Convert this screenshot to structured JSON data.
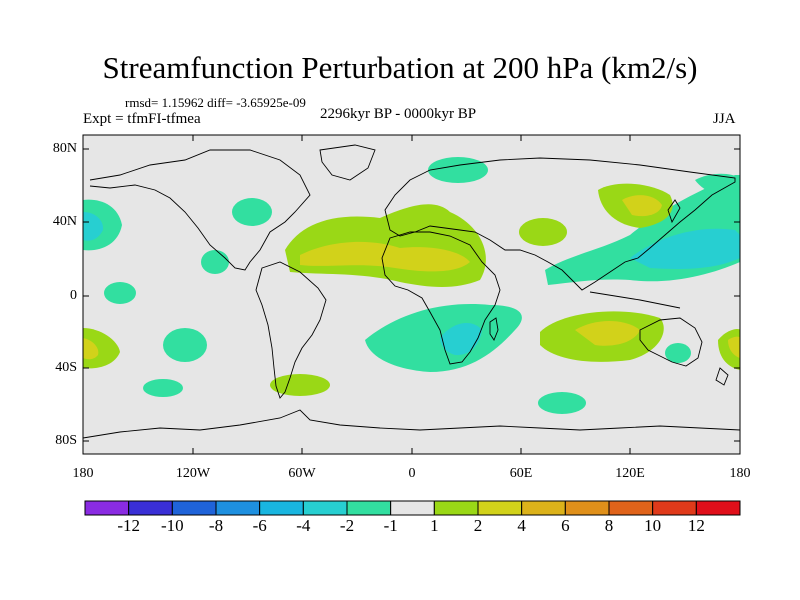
{
  "title": "Streamfunction Perturbation at 200 hPa (km2/s)",
  "stats": "rmsd= 1.15962 diff= -3.65925e-09",
  "experiment": "Expt = tfmFI-tfmea",
  "period": "2296kyr BP - 0000kyr BP",
  "season": "JJA",
  "lat_labels": [
    "80N",
    "40N",
    "0",
    "40S",
    "80S"
  ],
  "lon_labels": [
    "180",
    "120W",
    "60W",
    "0",
    "60E",
    "120E",
    "180"
  ],
  "colorbar": {
    "colors": [
      "#8a2be2",
      "#3a2fd6",
      "#1f63d9",
      "#1e90e0",
      "#19b6e0",
      "#27cfd1",
      "#32dfa0",
      "#e6e6e6",
      "#9ad816",
      "#d2d21a",
      "#dcb21a",
      "#e0901a",
      "#e0631a",
      "#e03a1a",
      "#e00f1a"
    ],
    "labels": [
      "-12",
      "-10",
      "-8",
      "-6",
      "-4",
      "-2",
      "-1",
      "1",
      "2",
      "4",
      "6",
      "8",
      "10",
      "12"
    ]
  },
  "colors": {
    "background": "#e6e6e6",
    "neg1": "#32dfa0",
    "neg2": "#27cfd1",
    "pos1": "#9ad816",
    "pos2": "#d2d21a",
    "coast": "#000000"
  }
}
